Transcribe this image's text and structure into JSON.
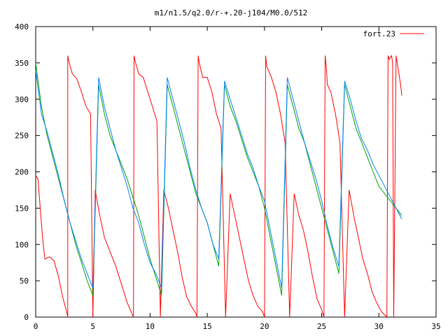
{
  "chart_data": {
    "type": "line",
    "title": "m1/n1.5/q2.0/r-+.20-j104/M0.0/512",
    "xlabel": "",
    "ylabel": "",
    "xlim": [
      0,
      35
    ],
    "ylim": [
      0,
      400
    ],
    "xticks": [
      "0",
      "5",
      "10",
      "15",
      "20",
      "25",
      "30",
      "35"
    ],
    "yticks": [
      "0",
      "50",
      "100",
      "150",
      "200",
      "250",
      "300",
      "350",
      "400"
    ],
    "grid": false,
    "legend_position": "top-right",
    "series": [
      {
        "name": "fort.23",
        "color": "#ff0000",
        "x": [
          0,
          0.2,
          0.4,
          0.6,
          0.8,
          1.2,
          1.6,
          2.0,
          2.4,
          2.7,
          2.8,
          2.8,
          2.9,
          3.2,
          3.6,
          4.0,
          4.4,
          4.8,
          5.0,
          5.2,
          5.6,
          6.0,
          6.5,
          7.0,
          7.5,
          8.0,
          8.4,
          8.55,
          8.6,
          8.7,
          9.0,
          9.4,
          9.8,
          10.2,
          10.6,
          10.9,
          11.2,
          11.6,
          12.0,
          12.4,
          12.8,
          13.2,
          13.6,
          14.0,
          14.1,
          14.2,
          14.3,
          14.6,
          15.0,
          15.4,
          15.8,
          16.2,
          16.6,
          17.0,
          17.4,
          17.8,
          18.2,
          18.6,
          19.0,
          19.4,
          19.8,
          20.0,
          20.1,
          20.2,
          20.6,
          21.0,
          21.4,
          21.8,
          22.2,
          22.6,
          23.0,
          23.4,
          23.8,
          24.2,
          24.6,
          25.0,
          25.2,
          25.3,
          25.4,
          25.5,
          25.8,
          26.2,
          26.6,
          27.0,
          27.4,
          27.8,
          28.2,
          28.6,
          29.0,
          29.4,
          29.8,
          30.2,
          30.5,
          30.7,
          30.8,
          30.9,
          31.1,
          31.2,
          31.3,
          31.5,
          31.7,
          31.9,
          32.0
        ],
        "y": [
          195,
          190,
          150,
          110,
          80,
          83,
          78,
          55,
          25,
          8,
          0,
          360,
          352,
          335,
          328,
          310,
          290,
          280,
          0,
          175,
          140,
          110,
          90,
          70,
          45,
          20,
          5,
          0,
          360,
          352,
          335,
          330,
          310,
          290,
          270,
          0,
          175,
          150,
          120,
          90,
          55,
          28,
          15,
          5,
          0,
          360,
          350,
          330,
          330,
          310,
          280,
          260,
          0,
          170,
          140,
          110,
          80,
          50,
          30,
          15,
          8,
          0,
          360,
          345,
          330,
          310,
          280,
          240,
          0,
          170,
          140,
          120,
          90,
          55,
          25,
          10,
          0,
          360,
          345,
          320,
          310,
          280,
          240,
          0,
          175,
          140,
          110,
          80,
          60,
          35,
          20,
          8,
          3,
          0,
          360,
          355,
          360,
          350,
          0,
          360,
          340,
          320,
          305
        ]
      },
      {
        "name": "",
        "color": "#00a000",
        "x": [
          0,
          0.5,
          1.0,
          1.5,
          2.0,
          2.5,
          3.0,
          3.5,
          4.0,
          4.5,
          5.0,
          5.5,
          6.0,
          6.5,
          7.0,
          7.5,
          8.0,
          8.5,
          9.0,
          9.5,
          10.0,
          10.5,
          11.0,
          11.5,
          12.0,
          12.5,
          13.0,
          13.5,
          14.0,
          14.5,
          15.0,
          15.5,
          16.0,
          16.5,
          17.0,
          17.5,
          18.0,
          18.5,
          19.0,
          19.5,
          20.0,
          20.5,
          21.0,
          21.5,
          22.0,
          22.5,
          23.0,
          23.5,
          24.0,
          24.5,
          25.0,
          25.5,
          26.0,
          26.5,
          27.0,
          27.5,
          28.0,
          28.5,
          29.0,
          29.5,
          30.0,
          30.5,
          31.0,
          31.5,
          32.0
        ],
        "y": [
          350,
          290,
          250,
          220,
          190,
          160,
          130,
          100,
          75,
          50,
          30,
          320,
          280,
          250,
          230,
          210,
          190,
          165,
          140,
          110,
          80,
          55,
          30,
          320,
          290,
          260,
          230,
          200,
          170,
          150,
          130,
          100,
          70,
          320,
          290,
          270,
          245,
          220,
          200,
          180,
          150,
          110,
          70,
          30,
          320,
          290,
          260,
          240,
          210,
          180,
          150,
          120,
          90,
          60,
          320,
          290,
          260,
          240,
          220,
          200,
          180,
          170,
          160,
          150,
          140
        ]
      },
      {
        "name": "",
        "color": "#0080ff",
        "x": [
          0,
          0.5,
          1.0,
          1.5,
          2.0,
          2.5,
          3.0,
          3.5,
          4.0,
          4.5,
          5.0,
          5.5,
          6.0,
          6.5,
          7.0,
          7.5,
          8.0,
          8.5,
          9.0,
          9.5,
          10.0,
          10.5,
          11.0,
          11.5,
          12.0,
          12.5,
          13.0,
          13.5,
          14.0,
          14.5,
          15.0,
          15.5,
          16.0,
          16.5,
          17.0,
          17.5,
          18.0,
          18.5,
          19.0,
          19.5,
          20.0,
          20.5,
          21.0,
          21.5,
          22.0,
          22.5,
          23.0,
          23.5,
          24.0,
          24.5,
          25.0,
          25.5,
          26.0,
          26.5,
          27.0,
          27.5,
          28.0,
          28.5,
          29.0,
          29.5,
          30.0,
          30.5,
          31.0,
          31.5,
          32.0
        ],
        "y": [
          340,
          280,
          255,
          225,
          195,
          160,
          130,
          105,
          80,
          60,
          40,
          330,
          290,
          260,
          230,
          205,
          180,
          150,
          130,
          100,
          75,
          60,
          40,
          330,
          300,
          270,
          240,
          205,
          175,
          150,
          130,
          100,
          80,
          325,
          300,
          275,
          250,
          225,
          205,
          180,
          160,
          120,
          80,
          40,
          330,
          300,
          270,
          240,
          215,
          190,
          160,
          125,
          95,
          70,
          325,
          300,
          270,
          245,
          230,
          210,
          195,
          180,
          165,
          150,
          135
        ]
      }
    ]
  }
}
